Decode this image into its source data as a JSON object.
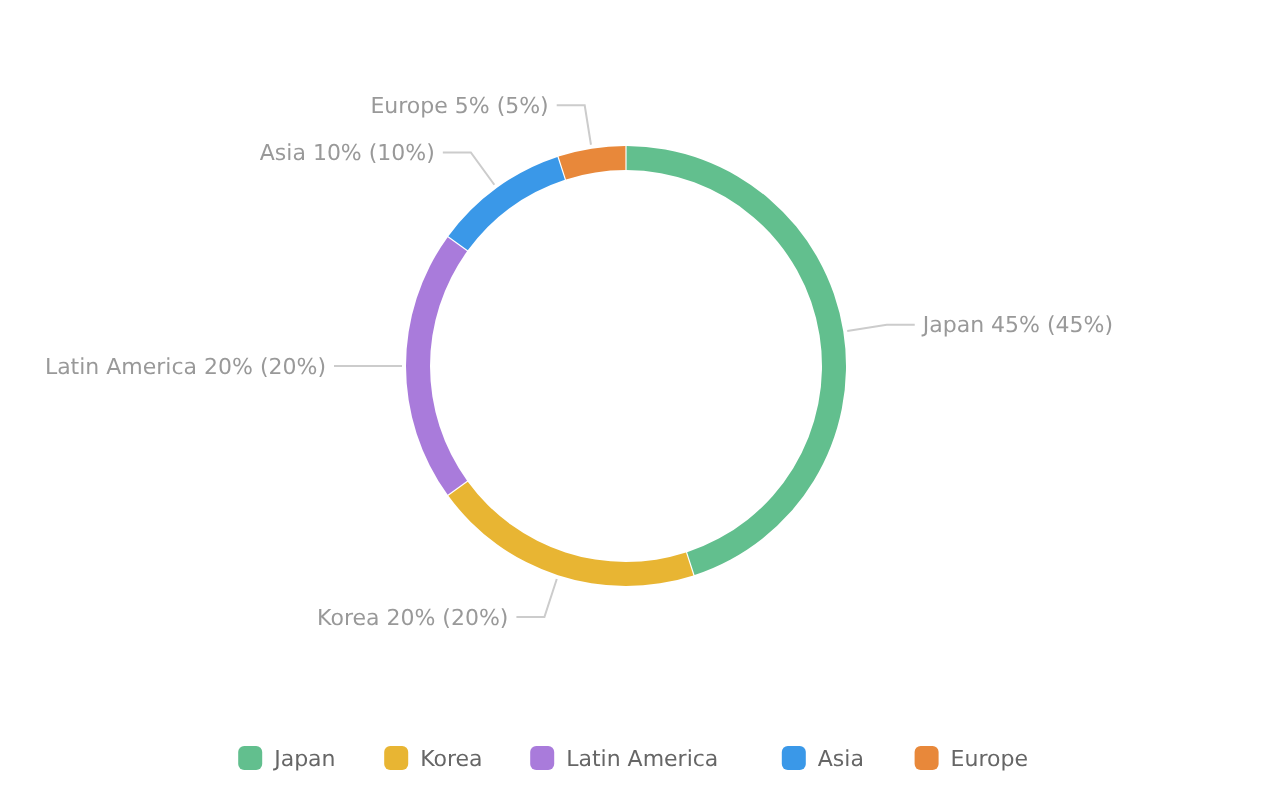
{
  "chart_data": {
    "type": "donut",
    "categories": [
      "Japan",
      "Korea",
      "Latin America",
      "Asia",
      "Europe"
    ],
    "values": [
      45,
      20,
      20,
      10,
      5
    ],
    "colors": [
      "#62bf8e",
      "#e8b533",
      "#a97bdb",
      "#3a98e8",
      "#e8883a"
    ],
    "value_labels": [
      "45% (45%)",
      "20% (20%)",
      "20% (20%)",
      "10% (10%)",
      "5% (5%)"
    ],
    "legend": "bottom"
  }
}
